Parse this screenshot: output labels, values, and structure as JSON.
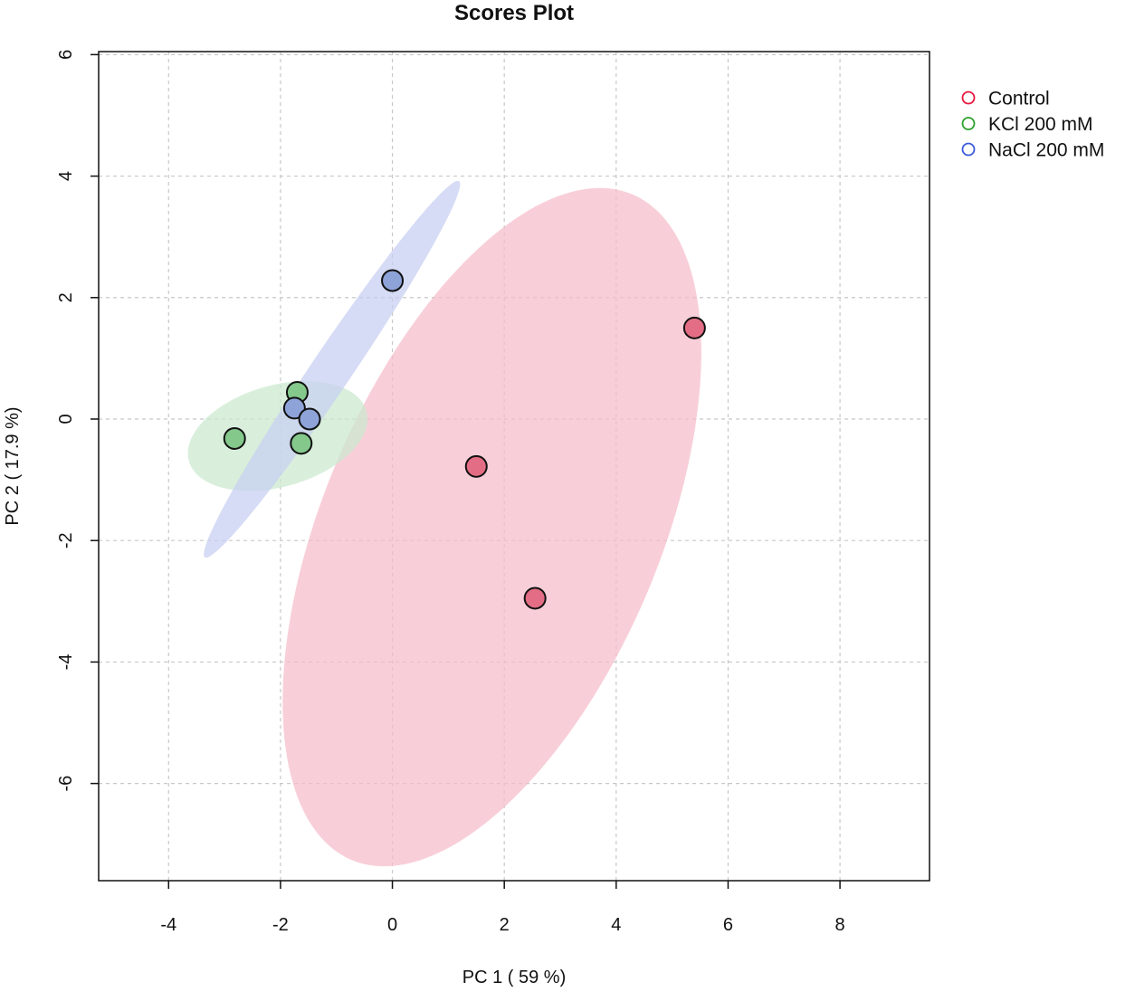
{
  "chart_data": {
    "type": "scatter",
    "title": "Scores Plot",
    "xlabel": "PC 1 ( 59 %)",
    "ylabel": "PC 2 ( 17.9 %)",
    "xlim": [
      -5.25,
      9.6
    ],
    "ylim": [
      -7.6,
      6.05
    ],
    "xticks": [
      -4,
      -2,
      0,
      2,
      4,
      6,
      8
    ],
    "yticks": [
      -6,
      -4,
      -2,
      0,
      2,
      4,
      6
    ],
    "grid": true,
    "legend_position": "top-right",
    "series": [
      {
        "name": "Control",
        "color": "#e8163c",
        "point_fill": "#e36d84",
        "ellipse_fill": "#f5bccb",
        "points": [
          [
            5.4,
            1.5
          ],
          [
            1.5,
            -0.78
          ],
          [
            2.55,
            -2.95
          ]
        ],
        "ellipse": {
          "cx": 1.78,
          "cy": -1.78,
          "rx": 6.03,
          "ry": 2.97,
          "angle_deg": 64.3
        }
      },
      {
        "name": "KCl 200 mM",
        "color": "#2ca02c",
        "point_fill": "#84c88c",
        "ellipse_fill": "#cbe9cf",
        "points": [
          [
            -2.82,
            -0.32
          ],
          [
            -1.7,
            0.44
          ],
          [
            -1.63,
            -0.4
          ]
        ],
        "ellipse": {
          "cx": -2.05,
          "cy": -0.28,
          "rx": 1.64,
          "ry": 0.84,
          "angle_deg": 13.7
        }
      },
      {
        "name": "NaCl 200 mM",
        "color": "#3b5bdb",
        "point_fill": "#8ea3d8",
        "ellipse_fill": "#c6cff1",
        "points": [
          [
            0.0,
            2.28
          ],
          [
            -1.75,
            0.18
          ],
          [
            -1.48,
            0.0
          ]
        ],
        "ellipse": {
          "cx": -1.08,
          "cy": 0.82,
          "rx": 3.84,
          "ry": 0.35,
          "angle_deg": 53.7
        }
      }
    ]
  }
}
